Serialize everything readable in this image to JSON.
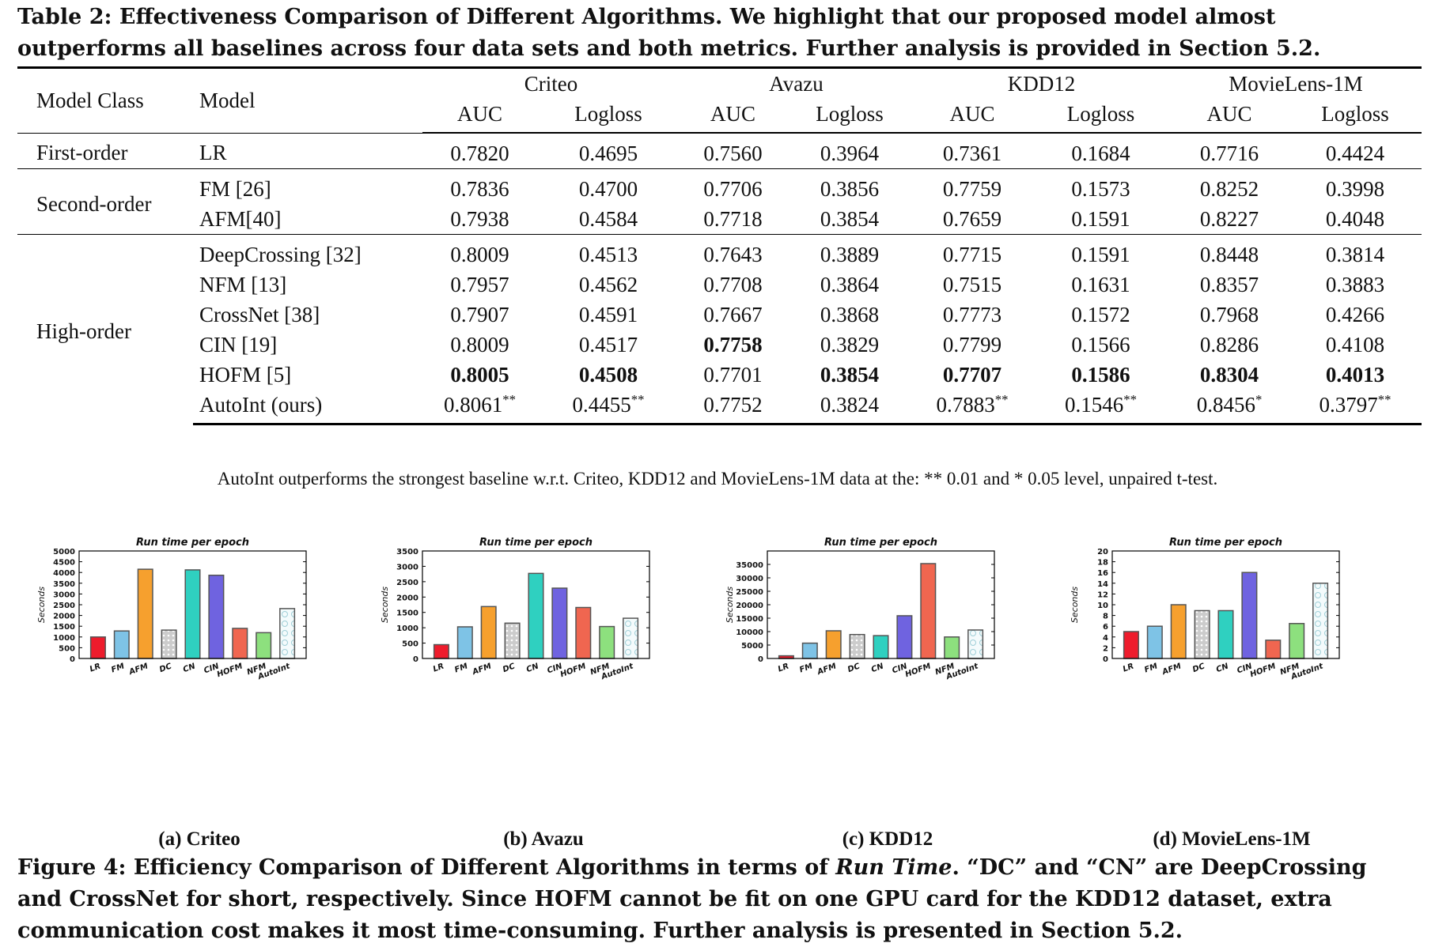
{
  "table": {
    "caption": "Table 2: Effectiveness Comparison of Different Algorithms. We highlight that our proposed model almost outperforms all baselines across four data sets and both metrics. Further analysis is provided in Section 5.2.",
    "col_model_class": "Model Class",
    "col_model": "Model",
    "datasets": [
      "Criteo",
      "Avazu",
      "KDD12",
      "MovieLens-1M"
    ],
    "metrics": [
      "AUC",
      "Logloss"
    ],
    "groups": [
      {
        "class": "First-order",
        "rows": [
          {
            "model": "LR",
            "values": [
              "0.7820",
              "0.4695",
              "0.7560",
              "0.3964",
              "0.7361",
              "0.1684",
              "0.7716",
              "0.4424"
            ]
          }
        ]
      },
      {
        "class": "Second-order",
        "rows": [
          {
            "model": "FM [26]",
            "values": [
              "0.7836",
              "0.4700",
              "0.7706",
              "0.3856",
              "0.7759",
              "0.1573",
              "0.8252",
              "0.3998"
            ]
          },
          {
            "model": "AFM[40]",
            "values": [
              "0.7938",
              "0.4584",
              "0.7718",
              "0.3854",
              "0.7659",
              "0.1591",
              "0.8227",
              "0.4048"
            ]
          }
        ]
      },
      {
        "class": "High-order",
        "rows": [
          {
            "model": "DeepCrossing [32]",
            "values": [
              "0.8009",
              "0.4513",
              "0.7643",
              "0.3889",
              "0.7715",
              "0.1591",
              "0.8448",
              "0.3814"
            ]
          },
          {
            "model": "NFM [13]",
            "values": [
              "0.7957",
              "0.4562",
              "0.7708",
              "0.3864",
              "0.7515",
              "0.1631",
              "0.8357",
              "0.3883"
            ]
          },
          {
            "model": "CrossNet [38]",
            "values": [
              "0.7907",
              "0.4591",
              "0.7667",
              "0.3868",
              "0.7773",
              "0.1572",
              "0.7968",
              "0.4266"
            ]
          },
          {
            "model": "CIN [19]",
            "values": [
              "0.8009",
              "0.4517",
              "0.7758",
              "0.3829",
              "0.7799",
              "0.1566",
              "0.8286",
              "0.4108"
            ]
          },
          {
            "model": "HOFM [5]",
            "values": [
              "0.8005",
              "0.4508",
              "0.7701",
              "0.3854",
              "0.7707",
              "0.1586",
              "0.8304",
              "0.4013"
            ]
          },
          {
            "model": "AutoInt (ours)",
            "values": [
              "0.8061",
              "0.4455",
              "0.7752",
              "0.3824",
              "0.7883",
              "0.1546",
              "0.8456",
              "0.3797"
            ],
            "marks": [
              "**",
              "**",
              "",
              "",
              "**",
              "**",
              "*",
              "**"
            ]
          }
        ]
      }
    ],
    "bold_cells": [
      [
        6,
        2
      ],
      [
        7,
        0
      ],
      [
        7,
        1
      ],
      [
        7,
        3
      ],
      [
        7,
        4
      ],
      [
        7,
        5
      ],
      [
        7,
        6
      ],
      [
        7,
        7
      ]
    ],
    "note": "AutoInt outperforms the strongest baseline w.r.t. Criteo, KDD12 and MovieLens-1M data at the: ** 0.01 and * 0.05 level, unpaired t-test."
  },
  "figure": {
    "caption_prefix": "Figure 4: Efficiency Comparison of Different Algorithms in terms of ",
    "caption_emph": "Run Time",
    "caption_suffix": ". “DC” and “CN” are DeepCrossing and CrossNet for short, respectively. Since HOFM cannot be fit on one GPU card for the KDD12 dataset, extra communication cost makes it most time-consuming. Further analysis is presented in Section 5.2.",
    "bar_colors": [
      "#ee1c2c",
      "#7ec3e6",
      "#f6a02e",
      "#cccccc",
      "#2fd0c0",
      "#6f63e0",
      "#f06650",
      "#8de07e",
      "#eef8fa"
    ]
  },
  "chart_data": [
    {
      "type": "bar",
      "sub_label": "(a) Criteo",
      "title": "Run time per epoch",
      "ylabel": "Seconds",
      "categories": [
        "LR",
        "FM",
        "AFM",
        "DC",
        "CN",
        "CIN",
        "HOFM",
        "NFM",
        "AutoInt"
      ],
      "values": [
        1000,
        1280,
        4150,
        1320,
        4120,
        3870,
        1400,
        1200,
        2320
      ],
      "ylim": [
        0,
        5000
      ],
      "yticks": [
        0,
        500,
        1000,
        1500,
        2000,
        2500,
        3000,
        3500,
        4000,
        4500,
        5000
      ]
    },
    {
      "type": "bar",
      "sub_label": "(b) Avazu",
      "title": "Run time per epoch",
      "ylabel": "Seconds",
      "categories": [
        "LR",
        "FM",
        "AFM",
        "DC",
        "CN",
        "CIN",
        "HOFM",
        "NFM",
        "AutoInt"
      ],
      "values": [
        450,
        1030,
        1690,
        1150,
        2770,
        2290,
        1660,
        1040,
        1310
      ],
      "ylim": [
        0,
        3500
      ],
      "yticks": [
        0,
        500,
        1000,
        1500,
        2000,
        2500,
        3000,
        3500
      ]
    },
    {
      "type": "bar",
      "sub_label": "(c) KDD12",
      "title": "Run time per epoch",
      "ylabel": "Seconds",
      "categories": [
        "LR",
        "FM",
        "AFM",
        "DC",
        "CN",
        "CIN",
        "HOFM",
        "NFM",
        "AutoInt"
      ],
      "values": [
        1000,
        5700,
        10300,
        8900,
        8500,
        15900,
        35300,
        8000,
        10600
      ],
      "ylim": [
        0,
        40000
      ],
      "yticks": [
        0,
        5000,
        10000,
        15000,
        20000,
        25000,
        30000,
        35000
      ]
    },
    {
      "type": "bar",
      "sub_label": "(d) MovieLens-1M",
      "title": "Run time per epoch",
      "ylabel": "Seconds",
      "categories": [
        "LR",
        "FM",
        "AFM",
        "DC",
        "CN",
        "CIN",
        "HOFM",
        "NFM",
        "AutoInt"
      ],
      "values": [
        5,
        6,
        10,
        8.9,
        8.9,
        16,
        3.4,
        6.5,
        14
      ],
      "ylim": [
        0,
        20
      ],
      "yticks": [
        0,
        2,
        4,
        6,
        8,
        10,
        12,
        14,
        16,
        18,
        20
      ]
    }
  ]
}
